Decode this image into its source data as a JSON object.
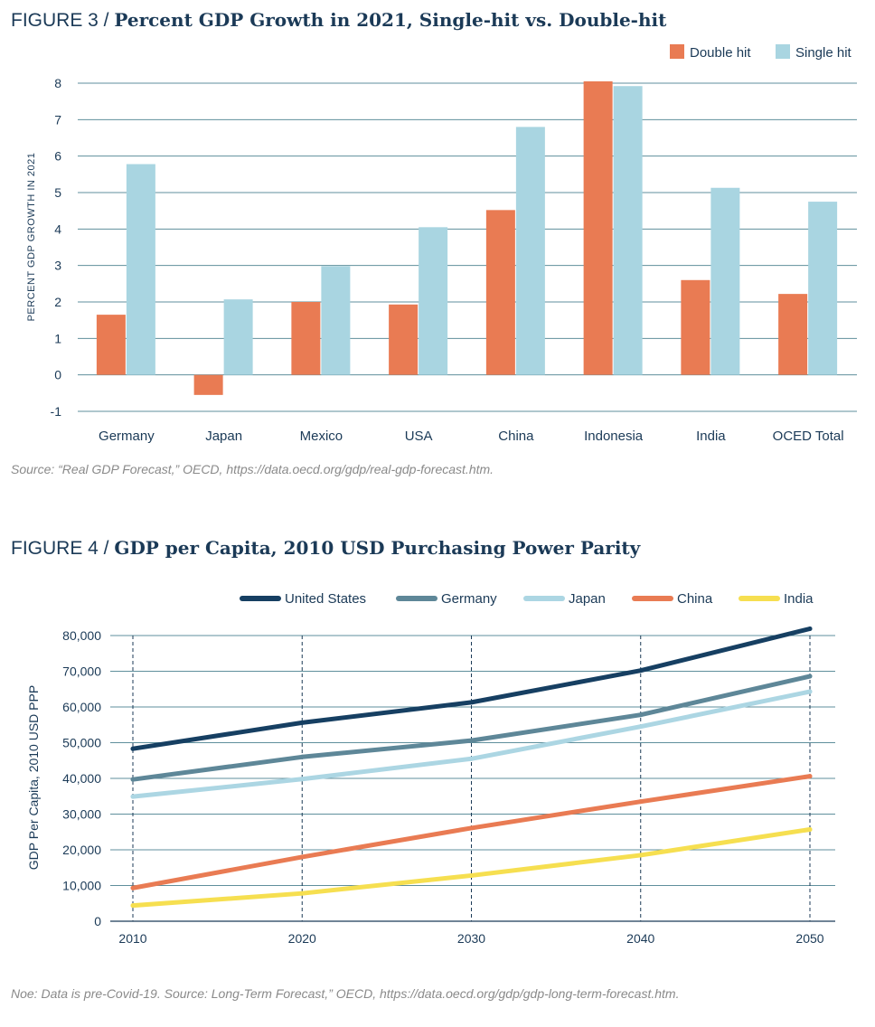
{
  "figure3": {
    "label": "FIGURE 3 / ",
    "title": "Percent GDP Growth in 2021, Single-hit vs. Double-hit",
    "source": "Source: “Real GDP Forecast,” OECD, https://data.oecd.org/gdp/real-gdp-forecast.htm."
  },
  "figure4": {
    "label": "FIGURE 4 / ",
    "title": "GDP per Capita, 2010 USD Purchasing Power Parity",
    "source": "Noe: Data is pre-Covid-19. Source: Long-Term Forecast,” OECD, https://data.oecd.org/gdp/gdp-long-term-forecast.htm."
  },
  "chart_data": [
    {
      "type": "bar",
      "title": "Percent GDP Growth in 2021, Single-hit vs. Double-hit",
      "ylabel": "PERCENT GDP GROWTH IN 2021",
      "xlabel": "",
      "ylim": [
        -1,
        8
      ],
      "yticks": [
        "8",
        "7",
        "6",
        "5",
        "4",
        "3",
        "2",
        "1",
        "0",
        "-1"
      ],
      "ytick_values": [
        8,
        7,
        6,
        5,
        4,
        3,
        2,
        1,
        0,
        -1
      ],
      "categories": [
        "Germany",
        "Japan",
        "Mexico",
        "USA",
        "China",
        "Indonesia",
        "India",
        "OCED Total"
      ],
      "series": [
        {
          "name": "Double hit",
          "color": "#e97b53",
          "values": [
            1.65,
            -0.55,
            2.0,
            1.93,
            4.52,
            8.05,
            2.6,
            2.22
          ]
        },
        {
          "name": "Single hit",
          "color": "#a9d5e1",
          "values": [
            5.78,
            2.07,
            2.98,
            4.05,
            6.8,
            7.92,
            5.13,
            4.75
          ]
        }
      ],
      "grid": true,
      "legend": "top-right"
    },
    {
      "type": "line",
      "title": "GDP per Capita, 2010 USD Purchasing Power Parity",
      "ylabel": "GDP Per Capita, 2010 USD PPP",
      "xlabel": "",
      "x": [
        2010,
        2020,
        2030,
        2040,
        2050
      ],
      "xticks": [
        "2010",
        "2020",
        "2030",
        "2040",
        "2050"
      ],
      "ylim": [
        0,
        80000
      ],
      "yticks": [
        "80,000",
        "70,000",
        "60,000",
        "50,000",
        "40,000",
        "30,000",
        "20,000",
        "10,000",
        "0"
      ],
      "ytick_values": [
        80000,
        70000,
        60000,
        50000,
        40000,
        30000,
        20000,
        10000,
        0
      ],
      "series": [
        {
          "name": "United States",
          "color": "#163f62",
          "values": [
            48300,
            55600,
            61300,
            70200,
            81900
          ]
        },
        {
          "name": "Germany",
          "color": "#5e8798",
          "values": [
            39700,
            46000,
            50600,
            57800,
            68600
          ]
        },
        {
          "name": "Japan",
          "color": "#acd6e3",
          "values": [
            34900,
            39800,
            45500,
            54500,
            64300
          ]
        },
        {
          "name": "China",
          "color": "#e97b53",
          "values": [
            9300,
            18000,
            26100,
            33500,
            40600
          ]
        },
        {
          "name": "India",
          "color": "#f6df50",
          "values": [
            4400,
            7800,
            12800,
            18500,
            25700
          ]
        }
      ],
      "grid": true,
      "legend": "top"
    }
  ]
}
